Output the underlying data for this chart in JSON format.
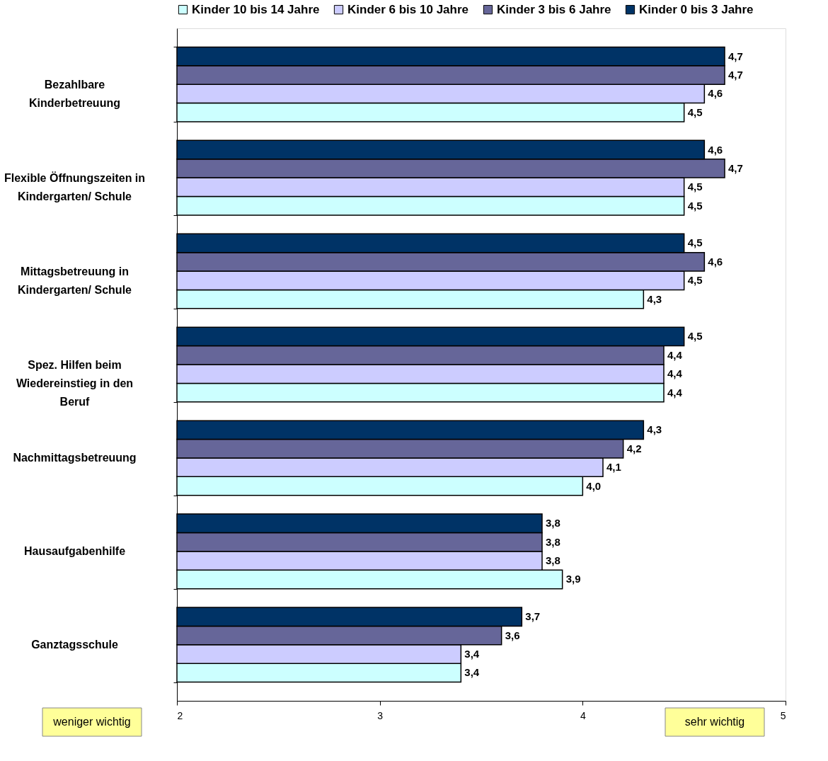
{
  "chart_data": {
    "type": "bar",
    "orientation": "horizontal",
    "categories": [
      "Bezahlbare\nKinderbetreuung",
      "Flexible Öffnungszeiten in\nKindergarten/ Schule",
      "Mittagsbetreuung in\nKindergarten/ Schule",
      "Spez. Hilfen beim\nWiedereinstieg in den\nBeruf",
      "Nachmittagsbetreuung",
      "Hausaufgabenhilfe",
      "Ganztagsschule"
    ],
    "series": [
      {
        "name": "Kinder 10 bis 14 Jahre",
        "color": "#ccffff",
        "values": [
          4.5,
          4.5,
          4.3,
          4.4,
          4.0,
          3.9,
          3.4
        ],
        "value_labels": [
          "4,5",
          "4,5",
          "4,3",
          "4,4",
          "4,0",
          "3,9",
          "3,4"
        ]
      },
      {
        "name": "Kinder 6 bis 10 Jahre",
        "color": "#ccccff",
        "values": [
          4.6,
          4.5,
          4.5,
          4.4,
          4.1,
          3.8,
          3.4
        ],
        "value_labels": [
          "4,6",
          "4,5",
          "4,5",
          "4,4",
          "4,1",
          "3,8",
          "3,4"
        ]
      },
      {
        "name": "Kinder 3 bis 6 Jahre",
        "color": "#666699",
        "values": [
          4.7,
          4.7,
          4.6,
          4.4,
          4.2,
          3.8,
          3.6
        ],
        "value_labels": [
          "4,7",
          "4,7",
          "4,6",
          "4,4",
          "4,2",
          "3,8",
          "3,6"
        ]
      },
      {
        "name": "Kinder 0 bis 3 Jahre",
        "color": "#003366",
        "values": [
          4.7,
          4.6,
          4.5,
          4.5,
          4.3,
          3.8,
          3.7
        ],
        "value_labels": [
          "4,7",
          "4,6",
          "4,5",
          "4,5",
          "4,3",
          "3,8",
          "3,7"
        ]
      }
    ],
    "xlim": [
      2,
      5
    ],
    "xticks": [
      2,
      3,
      4,
      5
    ],
    "grid": false,
    "legend": "top",
    "annotations": [
      "weniger wichtig",
      "sehr wichtig"
    ]
  }
}
